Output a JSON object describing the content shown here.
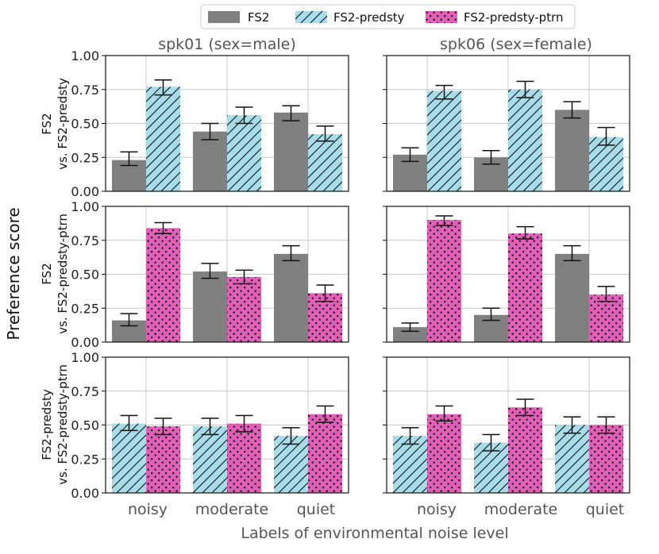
{
  "chart_data": {
    "type": "bar",
    "title": "",
    "xlabel": "Labels of environmental noise level",
    "ylabel": "Preference score",
    "ylim": [
      0,
      1
    ],
    "yticks": [
      "0.00",
      "0.25",
      "0.50",
      "0.75",
      "1.00"
    ],
    "categories": [
      "noisy",
      "moderate",
      "quiet"
    ],
    "grid": true,
    "legend_position": "top-center",
    "legend": [
      {
        "name": "FS2",
        "color": "#808080",
        "pattern": "solid"
      },
      {
        "name": "FS2-predsty",
        "color": "#a8dce8",
        "pattern": "hatch"
      },
      {
        "name": "FS2-predsty-ptrn",
        "color": "#e060b8",
        "pattern": "dots"
      }
    ],
    "columns": [
      "spk01 (sex=male)",
      "spk06 (sex=female)"
    ],
    "rows": [
      {
        "label_line1": "FS2",
        "label_line2": "vs. FS2-predsty",
        "series": [
          "FS2",
          "FS2-predsty"
        ],
        "panels": [
          {
            "values": [
              [
                0.23,
                0.77
              ],
              [
                0.44,
                0.56
              ],
              [
                0.58,
                0.42
              ]
            ],
            "errors": [
              [
                [
                  0.19,
                  0.29
                ],
                [
                  0.71,
                  0.82
                ]
              ],
              [
                [
                  0.38,
                  0.5
                ],
                [
                  0.5,
                  0.62
                ]
              ],
              [
                [
                  0.52,
                  0.63
                ],
                [
                  0.37,
                  0.48
                ]
              ]
            ]
          },
          {
            "values": [
              [
                0.27,
                0.74
              ],
              [
                0.25,
                0.75
              ],
              [
                0.6,
                0.4
              ]
            ],
            "errors": [
              [
                [
                  0.22,
                  0.32
                ],
                [
                  0.68,
                  0.78
                ]
              ],
              [
                [
                  0.2,
                  0.3
                ],
                [
                  0.69,
                  0.81
                ]
              ],
              [
                [
                  0.54,
                  0.66
                ],
                [
                  0.34,
                  0.47
                ]
              ]
            ]
          }
        ]
      },
      {
        "label_line1": "FS2",
        "label_line2": "vs. FS2-predsty-ptrn",
        "series": [
          "FS2",
          "FS2-predsty-ptrn"
        ],
        "panels": [
          {
            "values": [
              [
                0.16,
                0.84
              ],
              [
                0.52,
                0.48
              ],
              [
                0.65,
                0.36
              ]
            ],
            "errors": [
              [
                [
                  0.12,
                  0.21
                ],
                [
                  0.8,
                  0.88
                ]
              ],
              [
                [
                  0.47,
                  0.58
                ],
                [
                  0.43,
                  0.53
                ]
              ],
              [
                [
                  0.6,
                  0.71
                ],
                [
                  0.3,
                  0.42
                ]
              ]
            ]
          },
          {
            "values": [
              [
                0.11,
                0.9
              ],
              [
                0.2,
                0.8
              ],
              [
                0.65,
                0.35
              ]
            ],
            "errors": [
              [
                [
                  0.08,
                  0.14
                ],
                [
                  0.86,
                  0.93
                ]
              ],
              [
                [
                  0.16,
                  0.25
                ],
                [
                  0.76,
                  0.85
                ]
              ],
              [
                [
                  0.6,
                  0.71
                ],
                [
                  0.3,
                  0.41
                ]
              ]
            ]
          }
        ]
      },
      {
        "label_line1": "FS2-predsty",
        "label_line2": "vs. FS2-predsty-ptrn",
        "series": [
          "FS2-predsty",
          "FS2-predsty-ptrn"
        ],
        "panels": [
          {
            "values": [
              [
                0.51,
                0.49
              ],
              [
                0.49,
                0.51
              ],
              [
                0.42,
                0.58
              ]
            ],
            "errors": [
              [
                [
                  0.46,
                  0.57
                ],
                [
                  0.43,
                  0.55
                ]
              ],
              [
                [
                  0.43,
                  0.55
                ],
                [
                  0.45,
                  0.57
                ]
              ],
              [
                [
                  0.36,
                  0.48
                ],
                [
                  0.52,
                  0.64
                ]
              ]
            ]
          },
          {
            "values": [
              [
                0.42,
                0.58
              ],
              [
                0.37,
                0.63
              ],
              [
                0.5,
                0.5
              ]
            ],
            "errors": [
              [
                [
                  0.36,
                  0.48
                ],
                [
                  0.53,
                  0.64
                ]
              ],
              [
                [
                  0.31,
                  0.43
                ],
                [
                  0.57,
                  0.69
                ]
              ],
              [
                [
                  0.44,
                  0.56
                ],
                [
                  0.44,
                  0.56
                ]
              ]
            ]
          }
        ]
      }
    ]
  }
}
